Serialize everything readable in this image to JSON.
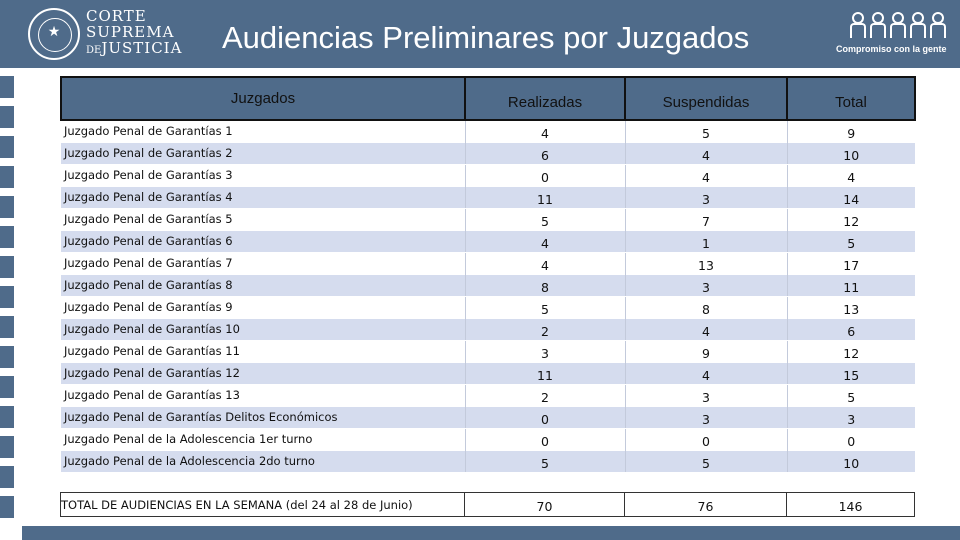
{
  "header": {
    "title": "Audiencias Preliminares por Juzgados",
    "org_line1": "CORTE",
    "org_line2": "SUPREMA",
    "org_line3_prefix": "DE",
    "org_line3": "JUSTICIA",
    "tagline": "Compromiso con la gente"
  },
  "table": {
    "columns": [
      "Juzgados",
      "Realizadas",
      "Suspendidas",
      "Total"
    ],
    "rows": [
      {
        "name": "Juzgado Penal de Garantías 1",
        "realizadas": "4",
        "suspendidas": "5",
        "total": "9"
      },
      {
        "name": "Juzgado Penal de Garantías 2",
        "realizadas": "6",
        "suspendidas": "4",
        "total": "10"
      },
      {
        "name": "Juzgado Penal de Garantías 3",
        "realizadas": "0",
        "suspendidas": "4",
        "total": "4"
      },
      {
        "name": "Juzgado Penal de Garantías 4",
        "realizadas": "11",
        "suspendidas": "3",
        "total": "14"
      },
      {
        "name": "Juzgado Penal de Garantías 5",
        "realizadas": "5",
        "suspendidas": "7",
        "total": "12"
      },
      {
        "name": "Juzgado Penal de Garantías 6",
        "realizadas": "4",
        "suspendidas": "1",
        "total": "5"
      },
      {
        "name": "Juzgado Penal de Garantías 7",
        "realizadas": "4",
        "suspendidas": "13",
        "total": "17"
      },
      {
        "name": "Juzgado Penal de Garantías 8",
        "realizadas": "8",
        "suspendidas": "3",
        "total": "11"
      },
      {
        "name": "Juzgado Penal de Garantías 9",
        "realizadas": "5",
        "suspendidas": "8",
        "total": "13"
      },
      {
        "name": "Juzgado Penal de Garantías 10",
        "realizadas": "2",
        "suspendidas": "4",
        "total": "6"
      },
      {
        "name": "Juzgado Penal de Garantías 11",
        "realizadas": "3",
        "suspendidas": "9",
        "total": "12"
      },
      {
        "name": "Juzgado Penal de Garantías 12",
        "realizadas": "11",
        "suspendidas": "4",
        "total": "15"
      },
      {
        "name": "Juzgado Penal de Garantías 13",
        "realizadas": "2",
        "suspendidas": "3",
        "total": "5"
      },
      {
        "name": "Juzgado Penal de Garantías Delitos Económicos",
        "realizadas": "0",
        "suspendidas": "3",
        "total": "3"
      },
      {
        "name": "Juzgado Penal de la Adolescencia 1er turno",
        "realizadas": "0",
        "suspendidas": "0",
        "total": "0"
      },
      {
        "name": "Juzgado Penal de la Adolescencia 2do turno",
        "realizadas": "5",
        "suspendidas": "5",
        "total": "10"
      }
    ],
    "total_row": {
      "name": "TOTAL DE AUDIENCIAS EN LA SEMANA  (del 24 al 28 de Junio)",
      "realizadas": "70",
      "suspendidas": "76",
      "total": "146"
    }
  },
  "colors": {
    "header_bg": "#4f6b8a",
    "row_band": "#d5dcee"
  }
}
